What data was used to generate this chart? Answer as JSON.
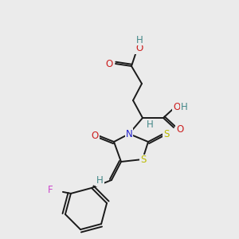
{
  "background_color": "#ebebeb",
  "bond_color": "#1a1a1a",
  "lw": 1.4,
  "atoms": {
    "N": {
      "color": "#2020cc",
      "fontsize": 8.5
    },
    "O": {
      "color": "#cc2020",
      "fontsize": 8.5
    },
    "S": {
      "color": "#bbbb00",
      "fontsize": 8.5
    },
    "F": {
      "color": "#cc44cc",
      "fontsize": 8.5
    },
    "H": {
      "color": "#448888",
      "fontsize": 8.5
    }
  },
  "figsize": [
    3.0,
    3.0
  ],
  "dpi": 100
}
